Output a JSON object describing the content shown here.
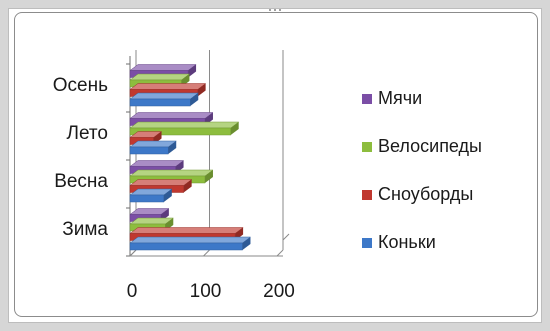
{
  "chart_data": {
    "type": "bar",
    "orientation": "horizontal",
    "style": "3d-clustered",
    "categories": [
      "Зима",
      "Весна",
      "Лето",
      "Осень"
    ],
    "series": [
      {
        "name": "Коньки",
        "color": "#3d78c8",
        "values": [
          153,
          46,
          52,
          82
        ]
      },
      {
        "name": "Сноуборды",
        "color": "#c0382f",
        "values": [
          143,
          73,
          32,
          92
        ]
      },
      {
        "name": "Велосипеды",
        "color": "#8dbd3e",
        "values": [
          48,
          102,
          137,
          70
        ]
      },
      {
        "name": "Мячи",
        "color": "#7b4ea6",
        "values": [
          42,
          62,
          102,
          79
        ]
      }
    ],
    "xlim": [
      0,
      200
    ],
    "x_ticks": [
      "0",
      "100",
      "200"
    ],
    "grid": true,
    "legend_position": "right"
  }
}
